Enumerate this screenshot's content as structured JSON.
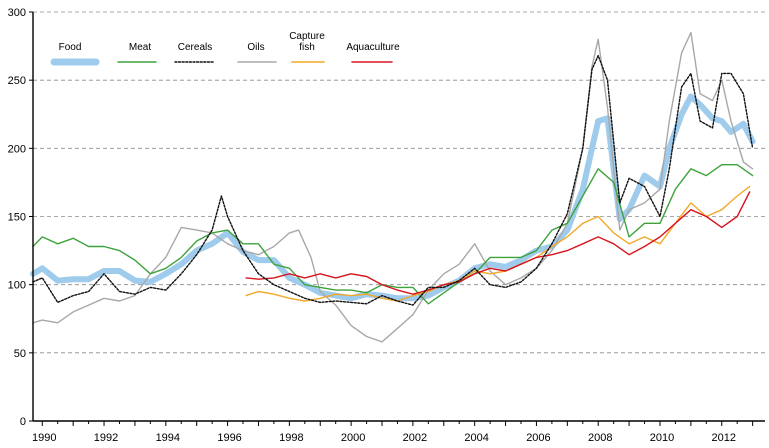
{
  "chart_data": {
    "type": "line",
    "title": "",
    "xlabel": "",
    "ylabel": "",
    "ylim": [
      0,
      300
    ],
    "yticks": [
      0,
      50,
      100,
      150,
      200,
      250,
      300
    ],
    "ytick_labels": [
      "0",
      "50",
      "100",
      "150",
      "200",
      "250",
      "300"
    ],
    "xlim": [
      1989.7,
      2013.4
    ],
    "xticks": [
      1990,
      1992,
      1994,
      1996,
      1998,
      2000,
      2002,
      2004,
      2006,
      2008,
      2010,
      2012
    ],
    "xtick_labels": [
      "1990",
      "1992",
      "1994",
      "1996",
      "1998",
      "2000",
      "2002",
      "2004",
      "2006",
      "2008",
      "2010",
      "2012"
    ],
    "grid": "horizontal dashed",
    "legend_position": "top-left",
    "series": [
      {
        "name": "Food",
        "color": "#9fcbec",
        "style": "thick",
        "x": [
          1989.7,
          1990.0,
          1990.5,
          1991.0,
          1991.5,
          1992.0,
          1992.5,
          1993.0,
          1993.5,
          1994.0,
          1994.5,
          1995.0,
          1995.5,
          1996.0,
          1996.5,
          1997.0,
          1997.5,
          1998.0,
          1998.5,
          1999.0,
          1999.5,
          2000.0,
          2000.5,
          2001.0,
          2001.5,
          2002.0,
          2002.5,
          2003.0,
          2003.5,
          2004.0,
          2004.5,
          2005.0,
          2005.5,
          2006.0,
          2006.5,
          2007.0,
          2007.5,
          2007.8,
          2008.0,
          2008.3,
          2008.7,
          2009.0,
          2009.5,
          2010.0,
          2010.3,
          2010.7,
          2011.0,
          2011.3,
          2011.7,
          2012.0,
          2012.3,
          2012.7,
          2013.0
        ],
        "y": [
          108,
          112,
          103,
          104,
          104,
          110,
          110,
          103,
          102,
          108,
          115,
          125,
          130,
          138,
          124,
          118,
          118,
          105,
          100,
          94,
          92,
          90,
          93,
          92,
          90,
          90,
          92,
          98,
          103,
          112,
          115,
          113,
          118,
          125,
          128,
          140,
          170,
          200,
          220,
          222,
          148,
          155,
          180,
          172,
          200,
          225,
          238,
          232,
          222,
          220,
          212,
          218,
          205
        ]
      },
      {
        "name": "Meat",
        "color": "#3ea33c",
        "style": "solid",
        "x": [
          1989.7,
          1990.0,
          1990.5,
          1991.0,
          1991.5,
          1992.0,
          1992.5,
          1993.0,
          1993.5,
          1994.0,
          1994.5,
          1995.0,
          1995.5,
          1996.0,
          1996.5,
          1997.0,
          1997.5,
          1998.0,
          1998.5,
          1999.0,
          1999.5,
          2000.0,
          2000.5,
          2001.0,
          2001.5,
          2002.0,
          2002.5,
          2003.0,
          2003.5,
          2004.0,
          2004.5,
          2005.0,
          2005.5,
          2006.0,
          2006.5,
          2007.0,
          2007.5,
          2008.0,
          2008.5,
          2009.0,
          2009.5,
          2010.0,
          2010.5,
          2011.0,
          2011.5,
          2012.0,
          2012.5,
          2013.0
        ],
        "y": [
          128,
          135,
          130,
          134,
          128,
          128,
          125,
          118,
          108,
          112,
          120,
          132,
          138,
          140,
          130,
          130,
          115,
          112,
          100,
          98,
          96,
          96,
          94,
          100,
          98,
          98,
          86,
          94,
          102,
          108,
          120,
          120,
          120,
          125,
          140,
          145,
          165,
          185,
          175,
          135,
          145,
          145,
          170,
          185,
          180,
          188,
          188,
          180
        ]
      },
      {
        "name": "Cereals",
        "color": "#111111",
        "style": "dotted",
        "x": [
          1989.7,
          1990.0,
          1990.5,
          1991.0,
          1991.5,
          1992.0,
          1992.5,
          1993.0,
          1993.5,
          1994.0,
          1994.5,
          1995.0,
          1995.5,
          1995.8,
          1996.0,
          1996.5,
          1997.0,
          1997.5,
          1998.0,
          1998.5,
          1999.0,
          1999.5,
          2000.0,
          2000.5,
          2001.0,
          2001.5,
          2002.0,
          2002.5,
          2003.0,
          2003.5,
          2004.0,
          2004.5,
          2005.0,
          2005.5,
          2006.0,
          2006.5,
          2007.0,
          2007.5,
          2007.8,
          2008.0,
          2008.3,
          2008.7,
          2009.0,
          2009.5,
          2010.0,
          2010.3,
          2010.7,
          2011.0,
          2011.3,
          2011.7,
          2012.0,
          2012.3,
          2012.7,
          2013.0
        ],
        "y": [
          102,
          105,
          87,
          92,
          95,
          108,
          95,
          93,
          98,
          96,
          108,
          122,
          140,
          165,
          150,
          125,
          108,
          100,
          95,
          90,
          87,
          88,
          87,
          86,
          92,
          88,
          85,
          98,
          98,
          103,
          112,
          100,
          98,
          102,
          112,
          130,
          152,
          200,
          258,
          268,
          250,
          160,
          178,
          172,
          150,
          185,
          245,
          255,
          220,
          215,
          255,
          255,
          240,
          200
        ]
      },
      {
        "name": "Oils",
        "color": "#a8a8a8",
        "style": "solid",
        "x": [
          1989.7,
          1990.0,
          1990.5,
          1991.0,
          1991.5,
          1992.0,
          1992.5,
          1993.0,
          1993.5,
          1994.0,
          1994.5,
          1995.0,
          1995.5,
          1996.0,
          1996.5,
          1997.0,
          1997.5,
          1998.0,
          1998.3,
          1998.7,
          1999.0,
          1999.5,
          2000.0,
          2000.5,
          2001.0,
          2001.5,
          2002.0,
          2002.5,
          2003.0,
          2003.5,
          2004.0,
          2004.5,
          2005.0,
          2005.5,
          2006.0,
          2006.5,
          2007.0,
          2007.5,
          2007.8,
          2008.0,
          2008.3,
          2008.7,
          2009.0,
          2009.5,
          2010.0,
          2010.3,
          2010.7,
          2011.0,
          2011.3,
          2011.7,
          2012.0,
          2012.3,
          2012.7,
          2013.0
        ],
        "y": [
          72,
          74,
          72,
          80,
          85,
          90,
          88,
          92,
          108,
          120,
          142,
          140,
          138,
          130,
          125,
          122,
          128,
          138,
          140,
          120,
          95,
          85,
          70,
          62,
          58,
          68,
          78,
          96,
          108,
          115,
          130,
          110,
          100,
          105,
          112,
          125,
          145,
          200,
          260,
          280,
          230,
          140,
          155,
          160,
          170,
          220,
          270,
          285,
          240,
          235,
          250,
          220,
          190,
          185
        ]
      },
      {
        "name": "Capture fish",
        "color": "#f2a92a",
        "style": "solid",
        "x": [
          1996.6,
          1997.0,
          1997.5,
          1998.0,
          1998.5,
          1999.0,
          1999.5,
          2000.0,
          2000.5,
          2001.0,
          2001.5,
          2002.0,
          2002.5,
          2003.0,
          2003.5,
          2004.0,
          2004.5,
          2005.0,
          2005.5,
          2006.0,
          2006.5,
          2007.0,
          2007.5,
          2008.0,
          2008.5,
          2009.0,
          2009.5,
          2010.0,
          2010.5,
          2011.0,
          2011.5,
          2012.0,
          2012.5,
          2012.9
        ],
        "y": [
          92,
          95,
          93,
          90,
          88,
          90,
          93,
          92,
          93,
          90,
          88,
          92,
          95,
          100,
          103,
          110,
          108,
          110,
          115,
          120,
          128,
          135,
          145,
          150,
          138,
          130,
          135,
          130,
          145,
          160,
          150,
          155,
          165,
          172
        ]
      },
      {
        "name": "Aquaculture",
        "color": "#d8151f",
        "style": "solid",
        "x": [
          1996.6,
          1997.0,
          1997.5,
          1998.0,
          1998.5,
          1999.0,
          1999.5,
          2000.0,
          2000.5,
          2001.0,
          2001.5,
          2002.0,
          2002.5,
          2003.0,
          2003.5,
          2004.0,
          2004.5,
          2005.0,
          2005.5,
          2006.0,
          2006.5,
          2007.0,
          2007.5,
          2008.0,
          2008.5,
          2009.0,
          2009.5,
          2010.0,
          2010.5,
          2011.0,
          2011.5,
          2012.0,
          2012.5,
          2012.9
        ],
        "y": [
          105,
          104,
          105,
          108,
          105,
          108,
          105,
          108,
          106,
          100,
          96,
          93,
          96,
          100,
          102,
          108,
          112,
          110,
          115,
          120,
          122,
          125,
          130,
          135,
          130,
          122,
          128,
          135,
          145,
          155,
          150,
          142,
          150,
          168
        ]
      }
    ]
  }
}
